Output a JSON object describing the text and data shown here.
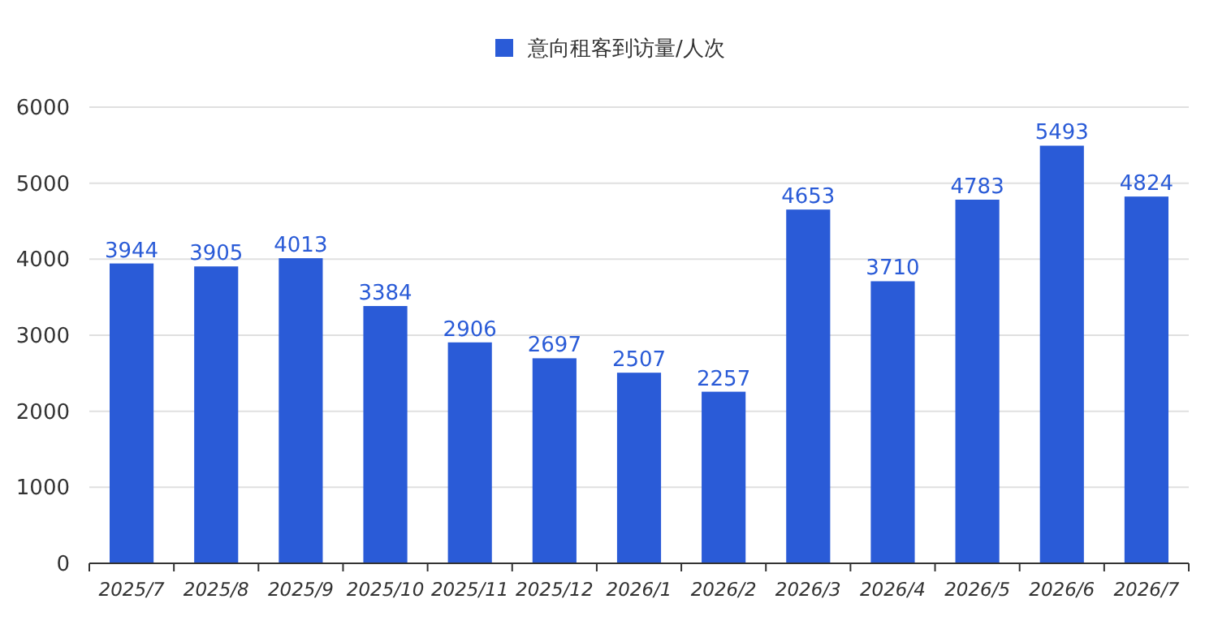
{
  "chart_data": {
    "type": "bar",
    "categories": [
      "2025/7",
      "2025/8",
      "2025/9",
      "2025/10",
      "2025/11",
      "2025/12",
      "2026/1",
      "2026/2",
      "2026/3",
      "2026/4",
      "2026/5",
      "2026/6",
      "2026/7"
    ],
    "series": [
      {
        "name": "意向租客到访量/人次",
        "color": "#2a5bd7",
        "values": [
          3944,
          3905,
          4013,
          3384,
          2906,
          2697,
          2507,
          2257,
          4653,
          3710,
          4783,
          5493,
          4824
        ]
      }
    ],
    "ylim": [
      0,
      6000
    ],
    "yticks": [
      0,
      1000,
      2000,
      3000,
      4000,
      5000,
      6000
    ],
    "grid": "y",
    "legend": "top",
    "data_labels": true
  }
}
